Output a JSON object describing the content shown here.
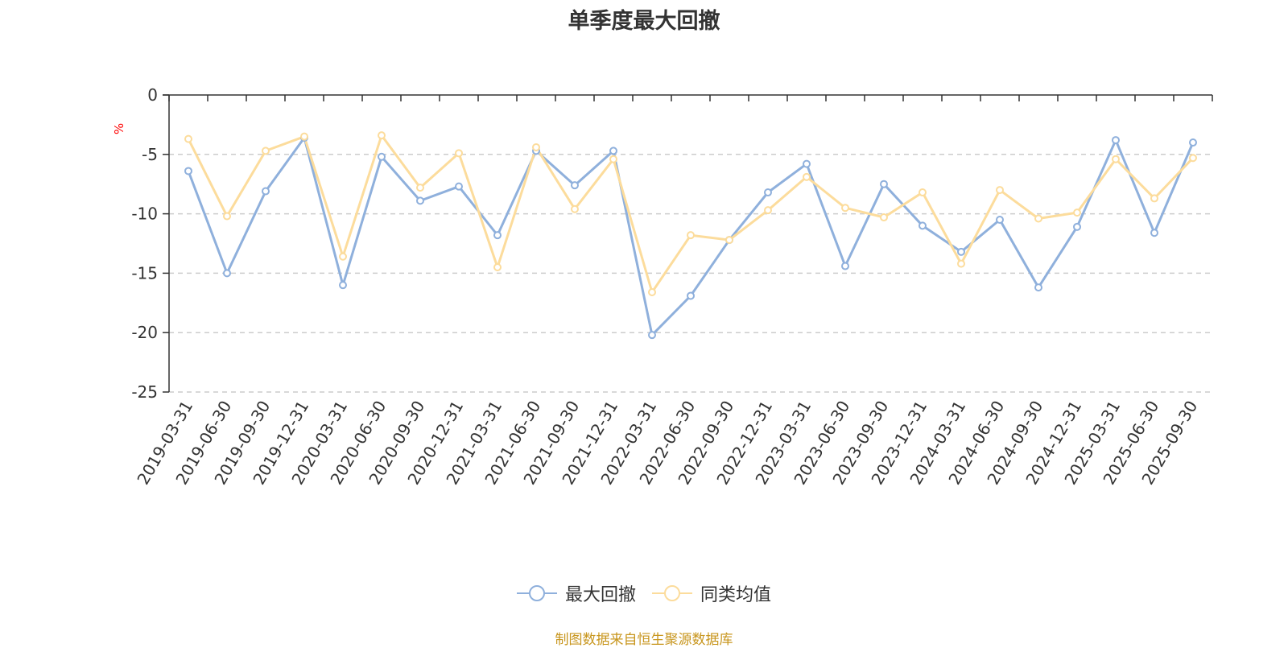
{
  "chart_data": {
    "type": "line",
    "title": "单季度最大回撤",
    "ylabel": "%",
    "xlabel": "",
    "ylim": [
      -25,
      0
    ],
    "yticks": [
      0,
      -5,
      -10,
      -15,
      -20,
      -25
    ],
    "grid": true,
    "legend_position": "bottom",
    "categories": [
      "2019-03-31",
      "2019-06-30",
      "2019-09-30",
      "2019-12-31",
      "2020-03-31",
      "2020-06-30",
      "2020-09-30",
      "2020-12-31",
      "2021-03-31",
      "2021-06-30",
      "2021-09-30",
      "2021-12-31",
      "2022-03-31",
      "2022-06-30",
      "2022-09-30",
      "2022-12-31",
      "2023-03-31",
      "2023-06-30",
      "2023-09-30",
      "2023-12-31",
      "2024-03-31",
      "2024-06-30",
      "2024-09-30",
      "2024-12-31",
      "2025-03-31",
      "2025-06-30",
      "2025-09-30"
    ],
    "series": [
      {
        "name": "最大回撤",
        "color": "#8fb0dc",
        "values": [
          -6.4,
          -15.0,
          -8.1,
          -3.6,
          -16.0,
          -5.2,
          -8.9,
          -7.7,
          -11.8,
          -4.7,
          -7.6,
          -4.7,
          -20.2,
          -16.9,
          -12.2,
          -8.2,
          -5.8,
          -14.4,
          -7.5,
          -11.0,
          -13.2,
          -10.5,
          -16.2,
          -11.1,
          -3.8,
          -11.6,
          -4.0
        ]
      },
      {
        "name": "同类均值",
        "color": "#fcdc9c",
        "values": [
          -3.7,
          -10.2,
          -4.7,
          -3.5,
          -13.6,
          -3.4,
          -7.8,
          -4.9,
          -14.5,
          -4.4,
          -9.6,
          -5.4,
          -16.6,
          -11.8,
          -12.2,
          -9.7,
          -6.9,
          -9.5,
          -10.3,
          -8.2,
          -14.2,
          -8.0,
          -10.4,
          -9.9,
          -5.4,
          -8.7,
          -5.3
        ]
      }
    ]
  },
  "axis_color": "#333333",
  "grid_color": "#cccccc",
  "ylabel_color": "#ff0000",
  "source": {
    "text": "制图数据来自恒生聚源数据库",
    "color": "#c8961e"
  }
}
